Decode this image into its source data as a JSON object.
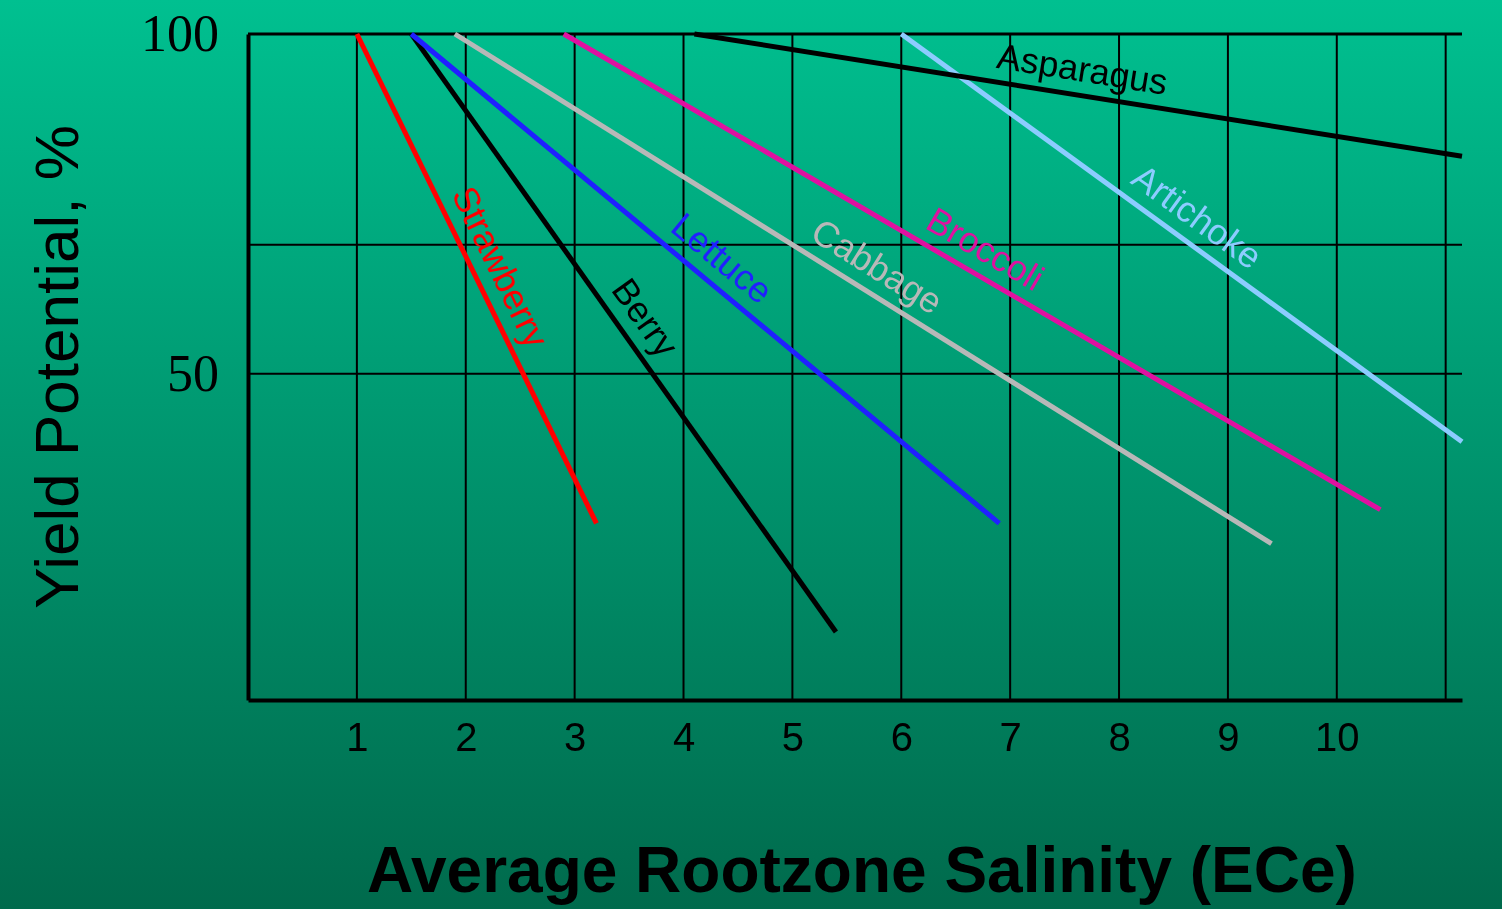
{
  "chart_data": {
    "type": "line",
    "xlabel": "Average Rootzone Salinity (ECe)",
    "ylabel": "Yield Potential, %",
    "xlim": [
      0,
      11.15
    ],
    "ylim": [
      2,
      100
    ],
    "xticks": [
      1,
      2,
      3,
      4,
      5,
      6,
      7,
      8,
      9,
      10,
      {
        "value": 11,
        "label": null
      }
    ],
    "yticks": [
      50,
      {
        "value": 69,
        "label": null
      },
      100
    ],
    "grid": true,
    "marker": "none",
    "line_style": "solid",
    "series": [
      {
        "name": "Strawberry",
        "color": "#ff0000",
        "x": [
          1.0,
          3.2
        ],
        "values": [
          100,
          28
        ]
      },
      {
        "name": "Berry",
        "color": "#000000",
        "x": [
          1.5,
          5.4
        ],
        "values": [
          100,
          12
        ]
      },
      {
        "name": "Lettuce",
        "color": "#2020ff",
        "x": [
          1.5,
          6.9
        ],
        "values": [
          100,
          28
        ]
      },
      {
        "name": "Cabbage",
        "color": "#b8b8b8",
        "x": [
          1.9,
          9.4
        ],
        "values": [
          100,
          25
        ]
      },
      {
        "name": "Broccoli",
        "color": "#e010a0",
        "x": [
          2.9,
          10.4
        ],
        "values": [
          100,
          30
        ]
      },
      {
        "name": "Artichoke",
        "color": "#8cccff",
        "x": [
          6.0,
          11.15
        ],
        "values": [
          100,
          40
        ]
      },
      {
        "name": "Asparagus",
        "color": "#000000",
        "x": [
          4.1,
          11.15
        ],
        "values": [
          100,
          82
        ]
      }
    ]
  }
}
